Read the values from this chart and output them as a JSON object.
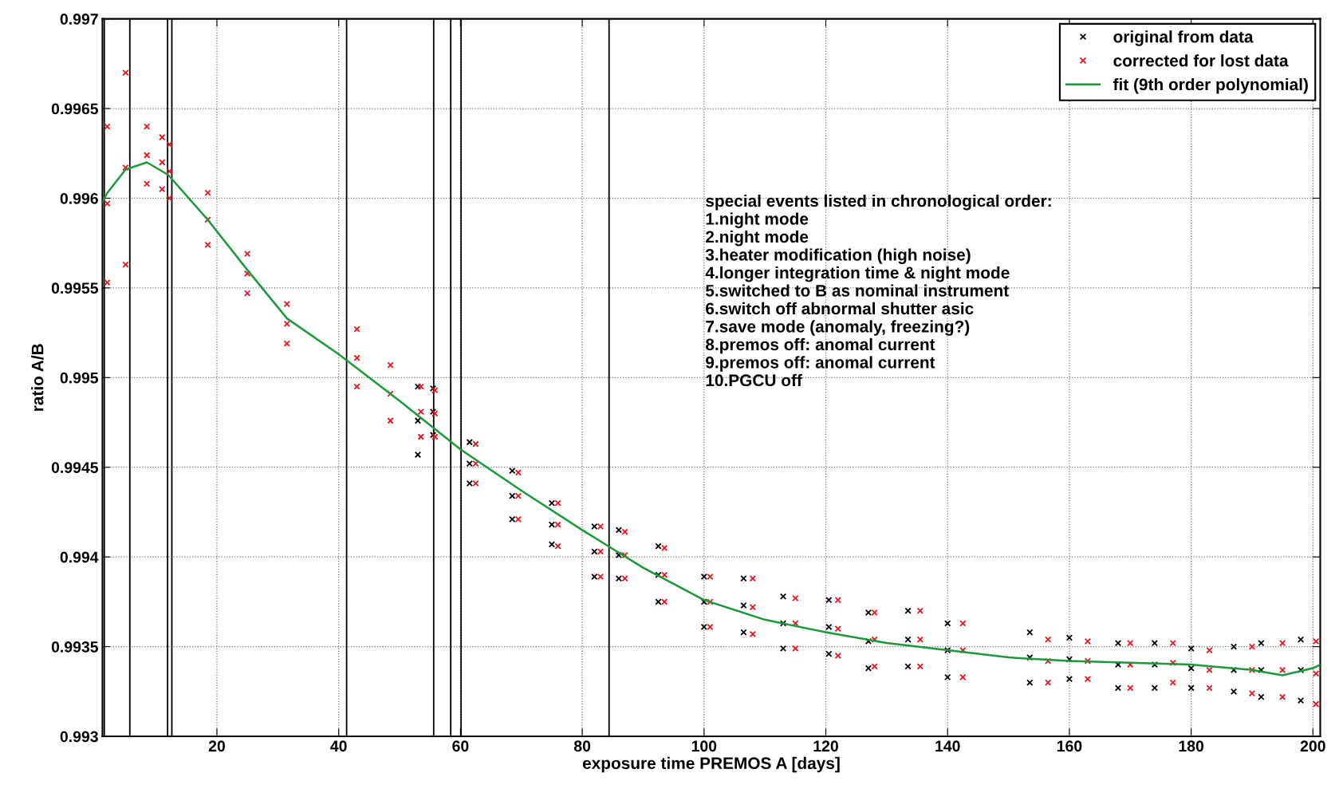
{
  "chart_data": {
    "type": "scatter",
    "xlabel": "exposure time PREMOS A [days]",
    "ylabel": "ratio A/B",
    "xlim": [
      1.2,
      201.2
    ],
    "xticks": [
      20,
      40,
      60,
      80,
      100,
      120,
      140,
      160,
      180,
      200
    ],
    "ylim": [
      0.993,
      0.997
    ],
    "yticks": [
      0.993,
      0.9935,
      0.994,
      0.9945,
      0.995,
      0.9955,
      0.996,
      0.9965,
      0.997
    ],
    "grid": true,
    "legend": "top right",
    "series": [
      {
        "name": "original from data",
        "marker": "cross",
        "color": "#000000",
        "x": [
          53,
          53,
          53,
          55.5,
          55.5,
          55.5,
          61.5,
          61.5,
          61.5,
          68.5,
          68.5,
          68.5,
          75,
          75,
          75,
          82,
          82,
          82,
          86,
          86,
          86,
          92.5,
          92.5,
          92.5,
          100,
          100,
          100,
          106.5,
          106.5,
          106.5,
          113,
          113,
          113,
          120.5,
          120.5,
          120.5,
          127,
          127,
          127,
          133.5,
          133.5,
          133.5,
          140,
          140,
          140,
          153.5,
          153.5,
          153.5,
          160,
          160,
          160,
          168,
          168,
          168,
          174,
          174,
          174,
          180,
          180,
          180,
          187,
          187,
          187,
          191.5,
          191.5,
          191.5,
          198,
          198,
          198
        ],
        "values": [
          0.99495,
          0.99476,
          0.99457,
          0.99494,
          0.99481,
          0.99468,
          0.99464,
          0.99452,
          0.99441,
          0.99448,
          0.99434,
          0.99421,
          0.9943,
          0.99418,
          0.99407,
          0.99417,
          0.99403,
          0.99389,
          0.99415,
          0.99401,
          0.99388,
          0.99406,
          0.9939,
          0.99375,
          0.99389,
          0.99375,
          0.99361,
          0.99388,
          0.99373,
          0.99358,
          0.99378,
          0.99363,
          0.99349,
          0.99376,
          0.99361,
          0.99346,
          0.99369,
          0.99353,
          0.99338,
          0.9937,
          0.99354,
          0.99339,
          0.99363,
          0.99348,
          0.99333,
          0.99358,
          0.99344,
          0.9933,
          0.99355,
          0.99343,
          0.99332,
          0.99352,
          0.9934,
          0.99327,
          0.99352,
          0.9934,
          0.99327,
          0.99349,
          0.99338,
          0.99327,
          0.9935,
          0.99337,
          0.99325,
          0.99352,
          0.99337,
          0.99322,
          0.99354,
          0.99337,
          0.9932
        ]
      },
      {
        "name": "corrected for lost data",
        "marker": "cross",
        "color": "#e8141e",
        "x": [
          2,
          2,
          2,
          5,
          5,
          5,
          8.5,
          8.5,
          8.5,
          11,
          11,
          11,
          12.2,
          12.2,
          12.2,
          18.5,
          18.5,
          18.5,
          25,
          25,
          25,
          31.5,
          31.5,
          31.5,
          43,
          43,
          43,
          48.5,
          48.5,
          48.5,
          53.5,
          53.5,
          53.5,
          55.8,
          55.8,
          55.8,
          62.5,
          62.5,
          62.5,
          69.5,
          69.5,
          69.5,
          76,
          76,
          76,
          83,
          83,
          83,
          87,
          87,
          87,
          93.5,
          93.5,
          93.5,
          101,
          101,
          101,
          108,
          108,
          108,
          115,
          115,
          115,
          122,
          122,
          122,
          128,
          128,
          128,
          135.5,
          135.5,
          135.5,
          142.5,
          142.5,
          142.5,
          156.5,
          156.5,
          156.5,
          163,
          163,
          163,
          170,
          170,
          170,
          177,
          177,
          177,
          183,
          183,
          183,
          190,
          190,
          190,
          195,
          195,
          195,
          200.5,
          200.5,
          200.5
        ],
        "values": [
          0.9964,
          0.99597,
          0.99553,
          0.9967,
          0.99617,
          0.99563,
          0.9964,
          0.99624,
          0.99608,
          0.99634,
          0.9962,
          0.99605,
          0.9963,
          0.99615,
          0.996,
          0.99603,
          0.99588,
          0.99574,
          0.99569,
          0.99558,
          0.99547,
          0.99541,
          0.9953,
          0.99519,
          0.99527,
          0.99511,
          0.99495,
          0.99507,
          0.99491,
          0.99476,
          0.99495,
          0.99481,
          0.99467,
          0.99493,
          0.9948,
          0.99467,
          0.99463,
          0.99452,
          0.99441,
          0.99447,
          0.99434,
          0.99421,
          0.9943,
          0.99418,
          0.99406,
          0.99417,
          0.99403,
          0.99389,
          0.99414,
          0.99401,
          0.99388,
          0.99405,
          0.9939,
          0.99375,
          0.99389,
          0.99375,
          0.99361,
          0.99388,
          0.99372,
          0.99357,
          0.99377,
          0.99363,
          0.99349,
          0.99376,
          0.9936,
          0.99345,
          0.99369,
          0.99354,
          0.99339,
          0.9937,
          0.99354,
          0.99339,
          0.99363,
          0.99348,
          0.99333,
          0.99354,
          0.99342,
          0.9933,
          0.99353,
          0.99342,
          0.99332,
          0.99352,
          0.9934,
          0.99327,
          0.99352,
          0.99341,
          0.9933,
          0.99348,
          0.99337,
          0.99327,
          0.9935,
          0.99337,
          0.99324,
          0.99352,
          0.99337,
          0.99322,
          0.99353,
          0.99335,
          0.99318
        ]
      },
      {
        "name": "fit (9th order polynomial)",
        "type": "line",
        "marker": "none",
        "color": "#1a9a3a",
        "x": [
          1.2,
          2,
          5,
          8.5,
          12,
          18.5,
          25,
          31.5,
          40,
          50,
          60,
          70,
          80,
          90,
          100,
          110,
          120,
          130,
          140,
          150,
          160,
          170,
          180,
          190,
          195,
          200,
          201.2
        ],
        "values": [
          0.99598,
          0.99603,
          0.99616,
          0.9962,
          0.99613,
          0.99588,
          0.9956,
          0.99533,
          0.99513,
          0.99487,
          0.9946,
          0.99437,
          0.99415,
          0.99394,
          0.99376,
          0.99365,
          0.99358,
          0.99352,
          0.99348,
          0.99344,
          0.99342,
          0.99341,
          0.9934,
          0.99337,
          0.99334,
          0.99338,
          0.9934
        ]
      }
    ],
    "ref_lines": [
      {
        "axis": "x",
        "value": 1.5,
        "color": "#000000"
      },
      {
        "axis": "x",
        "value": 5.7,
        "color": "#000000"
      },
      {
        "axis": "x",
        "value": 11.9,
        "color": "#000000"
      },
      {
        "axis": "x",
        "value": 12.6,
        "color": "#000000"
      },
      {
        "axis": "x",
        "value": 41.3,
        "color": "#000000"
      },
      {
        "axis": "x",
        "value": 55.6,
        "color": "#000000"
      },
      {
        "axis": "x",
        "value": 58.4,
        "color": "#000000"
      },
      {
        "axis": "x",
        "value": 60.1,
        "color": "#000000"
      },
      {
        "axis": "x",
        "value": 84.4,
        "color": "#000000"
      }
    ],
    "annotations": [
      "special events listed in chronological order:",
      "1.night mode",
      "2.night mode",
      "3.heater modification (high noise)",
      "4.longer integration time & night mode",
      "5.switched to B as nominal instrument",
      "6.switch off abnormal shutter asic",
      "7.save mode (anomaly, freezing?)",
      "8.premos off: anomal current",
      "9.premos off: anomal current",
      "10.PGCU off"
    ]
  }
}
